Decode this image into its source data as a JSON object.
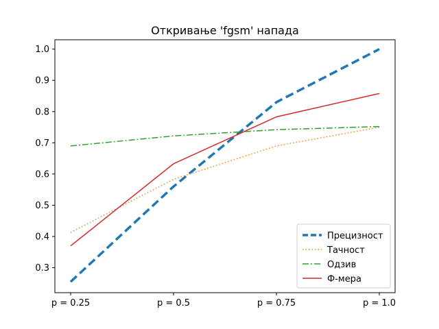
{
  "chart_data": {
    "type": "line",
    "title": "Откривање 'fgsm' напада",
    "xlabel": "",
    "ylabel": "",
    "categories": [
      "p = 0.25",
      "p = 0.5",
      "p = 0.75",
      "p = 1.0"
    ],
    "ylim": [
      0.22,
      1.03
    ],
    "yticks": [
      "0.3",
      "0.4",
      "0.5",
      "0.6",
      "0.7",
      "0.8",
      "0.9",
      "1.0"
    ],
    "grid": false,
    "legend_position": "lower-right",
    "series": [
      {
        "name": "Прецизност",
        "values": [
          0.255,
          0.56,
          0.83,
          1.0
        ],
        "color": "#1f77b4",
        "style": "dashed-thick"
      },
      {
        "name": "Тачност",
        "values": [
          0.413,
          0.583,
          0.69,
          0.75
        ],
        "color": "#ff7f0e",
        "style": "dotted"
      },
      {
        "name": "Одзив",
        "values": [
          0.69,
          0.722,
          0.742,
          0.752
        ],
        "color": "#2ca02c",
        "style": "dashdot"
      },
      {
        "name": "Ф-мера",
        "values": [
          0.37,
          0.633,
          0.783,
          0.858
        ],
        "color": "#d62728",
        "style": "solid"
      }
    ]
  }
}
